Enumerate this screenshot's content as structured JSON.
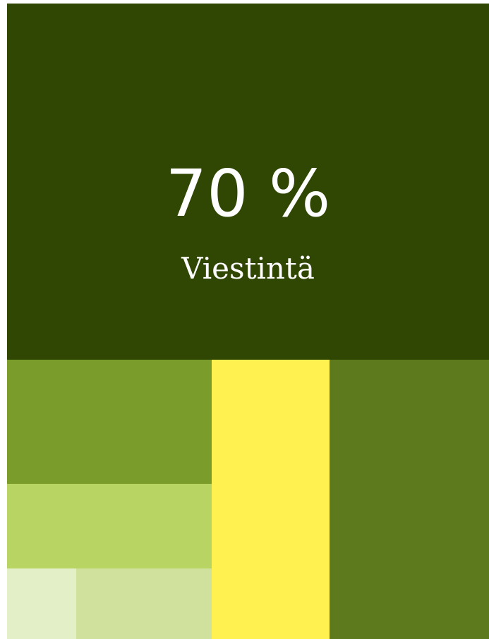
{
  "tile": {
    "value": "70 %",
    "label": "Viestintä"
  }
}
